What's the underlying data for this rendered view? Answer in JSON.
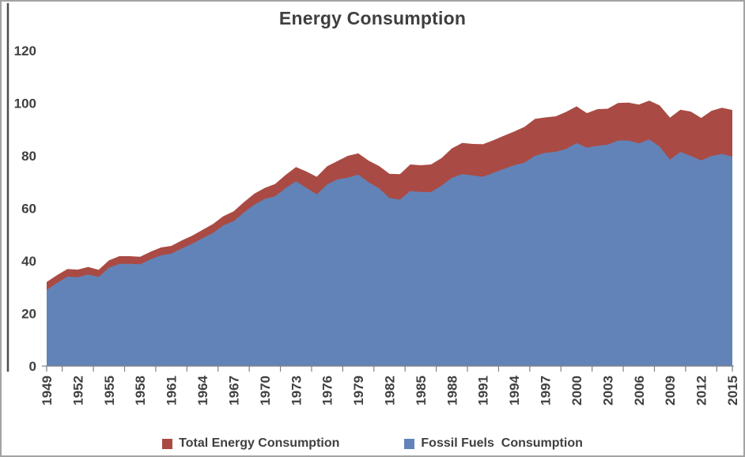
{
  "title": "Energy Consumption",
  "legend": [
    {
      "label": "Total Energy Consumption",
      "color": "#a94b44"
    },
    {
      "label": "Fossil Fuels  Consumption",
      "color": "#6283b8"
    }
  ],
  "axis": {
    "label_color": "#404040",
    "line_color": "#808080"
  },
  "chart_data": {
    "type": "area",
    "title": "Energy Consumption",
    "xlabel": "",
    "ylabel": "",
    "ylim": [
      0,
      120
    ],
    "yticks": [
      0,
      20,
      40,
      60,
      80,
      100,
      120
    ],
    "xticks": [
      1949,
      1952,
      1955,
      1958,
      1961,
      1964,
      1967,
      1970,
      1973,
      1976,
      1979,
      1982,
      1985,
      1988,
      1991,
      1994,
      1997,
      2000,
      2003,
      2006,
      2009,
      2012,
      2015
    ],
    "grid": false,
    "legend_position": "bottom",
    "x": [
      1949,
      1950,
      1951,
      1952,
      1953,
      1954,
      1955,
      1956,
      1957,
      1958,
      1959,
      1960,
      1961,
      1962,
      1963,
      1964,
      1965,
      1966,
      1967,
      1968,
      1969,
      1970,
      1971,
      1972,
      1973,
      1974,
      1975,
      1976,
      1977,
      1978,
      1979,
      1980,
      1981,
      1982,
      1983,
      1984,
      1985,
      1986,
      1987,
      1988,
      1989,
      1990,
      1991,
      1992,
      1993,
      1994,
      1995,
      1996,
      1997,
      1998,
      1999,
      2000,
      2001,
      2002,
      2003,
      2004,
      2005,
      2006,
      2007,
      2008,
      2009,
      2010,
      2011,
      2012,
      2013,
      2014,
      2015
    ],
    "series": [
      {
        "name": "Total Energy Consumption",
        "color": "#a94b44",
        "values": [
          32.0,
          34.6,
          36.9,
          36.7,
          37.7,
          36.6,
          40.2,
          41.8,
          41.8,
          41.6,
          43.5,
          45.1,
          45.7,
          47.8,
          49.6,
          51.8,
          54.0,
          57.0,
          58.9,
          62.4,
          65.6,
          67.8,
          69.3,
          72.7,
          75.7,
          74.0,
          72.0,
          76.0,
          78.0,
          80.0,
          80.9,
          78.1,
          76.1,
          73.1,
          73.0,
          76.7,
          76.4,
          76.7,
          79.1,
          82.8,
          84.9,
          84.5,
          84.4,
          85.9,
          87.6,
          89.2,
          91.0,
          94.0,
          94.6,
          95.0,
          96.7,
          98.8,
          96.2,
          97.7,
          97.9,
          100.1,
          100.2,
          99.5,
          101.0,
          99.2,
          94.5,
          97.5,
          96.8,
          94.4,
          97.1,
          98.3,
          97.4
        ]
      },
      {
        "name": "Fossil Fuels Consumption",
        "color": "#6283b8",
        "values": [
          29.0,
          31.6,
          34.0,
          33.8,
          34.8,
          33.9,
          37.4,
          38.9,
          38.9,
          38.7,
          40.6,
          42.1,
          42.8,
          44.7,
          46.5,
          48.6,
          50.6,
          53.5,
          55.1,
          58.5,
          61.4,
          63.6,
          64.6,
          67.7,
          70.3,
          67.8,
          65.3,
          69.1,
          71.0,
          71.7,
          72.8,
          69.9,
          67.6,
          63.9,
          63.3,
          66.6,
          66.2,
          66.2,
          68.6,
          71.6,
          73.0,
          72.5,
          72.0,
          73.5,
          75.0,
          76.4,
          77.4,
          80.0,
          81.1,
          81.5,
          82.6,
          84.8,
          83.1,
          83.8,
          84.2,
          85.8,
          85.8,
          84.7,
          86.2,
          83.5,
          78.5,
          81.4,
          79.9,
          78.2,
          79.9,
          80.7,
          79.7
        ]
      }
    ]
  }
}
